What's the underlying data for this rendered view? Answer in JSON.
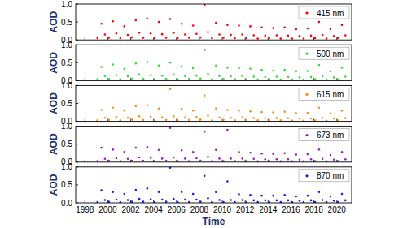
{
  "chart_data": [
    {
      "type": "scatter",
      "y_label": "AOD",
      "marker": "circle",
      "legend": "upper right",
      "tick_labels": "y",
      "xlim": [
        1997.2,
        2021.3
      ],
      "xticks": [
        1998,
        2000,
        2002,
        2004,
        2006,
        2008,
        2010,
        2012,
        2014,
        2016,
        2018,
        2020
      ],
      "ylim": [
        0,
        1
      ],
      "yticks": [
        {
          "value": 0,
          "label": "0.0"
        },
        {
          "value": 0.5,
          "label": "0.5"
        },
        {
          "value": 1,
          "label": "1.0"
        }
      ],
      "x": [
        1999.1,
        1999.45,
        1999.75,
        2000.1,
        2000.45,
        2000.75,
        2001.1,
        2001.45,
        2001.75,
        2002.1,
        2002.45,
        2002.75,
        2003.1,
        2003.45,
        2003.75,
        2004.1,
        2004.45,
        2004.75,
        2005.1,
        2005.45,
        2005.75,
        2006.1,
        2006.45,
        2006.75,
        2007.1,
        2007.45,
        2007.75,
        2008.1,
        2008.45,
        2008.75,
        2009.1,
        2009.45,
        2009.75,
        2010.1,
        2010.45,
        2010.75,
        2011.1,
        2011.45,
        2011.75,
        2012.1,
        2012.45,
        2012.75,
        2013.1,
        2013.45,
        2013.75,
        2014.1,
        2014.45,
        2014.75,
        2015.1,
        2015.45,
        2015.75,
        2016.1,
        2016.45,
        2016.75,
        2017.1,
        2017.45,
        2017.75,
        2018.1,
        2018.45,
        2018.75,
        2019.1,
        2019.45,
        2019.75,
        2020.1,
        2020.45,
        2020.75
      ],
      "series": [
        {
          "name": "415 nm",
          "color": "#ff0000",
          "values": [
            0.05,
            0.45,
            0.15,
            0.06,
            0.52,
            0.18,
            0.05,
            0.38,
            0.14,
            0.07,
            0.55,
            0.2,
            0.06,
            0.6,
            0.18,
            0.05,
            0.5,
            0.16,
            0.06,
            0.58,
            0.2,
            0.05,
            0.45,
            0.15,
            0.06,
            0.4,
            0.17,
            0.07,
            0.98,
            0.22,
            0.05,
            0.48,
            0.15,
            0.06,
            0.42,
            0.14,
            0.05,
            0.4,
            0.15,
            0.05,
            0.38,
            0.13,
            0.04,
            0.35,
            0.12,
            0.05,
            0.33,
            0.13,
            0.04,
            0.35,
            0.12,
            0.04,
            0.3,
            0.11,
            0.04,
            0.32,
            0.12,
            0.05,
            0.5,
            0.14,
            0.04,
            0.3,
            0.11,
            0.05,
            0.42,
            0.13
          ]
        }
      ]
    },
    {
      "type": "scatter",
      "y_label": "AOD",
      "marker": "circle",
      "legend": "upper right",
      "tick_labels": "y",
      "xlim": [
        1997.2,
        2021.3
      ],
      "xticks": [
        1998,
        2000,
        2002,
        2004,
        2006,
        2008,
        2010,
        2012,
        2014,
        2016,
        2018,
        2020
      ],
      "ylim": [
        0,
        1
      ],
      "yticks": [
        {
          "value": 0,
          "label": "0.0"
        },
        {
          "value": 0.5,
          "label": "0.5"
        },
        {
          "value": 1,
          "label": "1.0"
        }
      ],
      "x": [
        1999.1,
        1999.45,
        1999.75,
        2000.1,
        2000.45,
        2000.75,
        2001.1,
        2001.45,
        2001.75,
        2002.1,
        2002.45,
        2002.75,
        2003.1,
        2003.45,
        2003.75,
        2004.1,
        2004.45,
        2004.75,
        2005.1,
        2005.45,
        2005.75,
        2006.1,
        2006.45,
        2006.75,
        2007.1,
        2007.45,
        2007.75,
        2008.1,
        2008.45,
        2008.75,
        2009.1,
        2009.45,
        2009.75,
        2010.1,
        2010.45,
        2010.75,
        2011.1,
        2011.45,
        2011.75,
        2012.1,
        2012.45,
        2012.75,
        2013.1,
        2013.45,
        2013.75,
        2014.1,
        2014.45,
        2014.75,
        2015.1,
        2015.45,
        2015.75,
        2016.1,
        2016.45,
        2016.75,
        2017.1,
        2017.45,
        2017.75,
        2018.1,
        2018.45,
        2018.75,
        2019.1,
        2019.45,
        2019.75,
        2020.1,
        2020.45,
        2020.75
      ],
      "series": [
        {
          "name": "500 nm",
          "color": "#33dd33",
          "values": [
            0.04,
            0.38,
            0.13,
            0.05,
            0.45,
            0.15,
            0.04,
            0.33,
            0.12,
            0.06,
            0.48,
            0.17,
            0.05,
            0.52,
            0.15,
            0.04,
            0.42,
            0.14,
            0.05,
            0.5,
            0.17,
            0.04,
            0.4,
            0.13,
            0.05,
            0.35,
            0.14,
            0.06,
            0.85,
            0.19,
            0.04,
            0.42,
            0.13,
            0.05,
            0.36,
            0.12,
            0.04,
            0.35,
            0.13,
            0.04,
            0.33,
            0.11,
            0.03,
            0.3,
            0.1,
            0.04,
            0.28,
            0.11,
            0.03,
            0.3,
            0.1,
            0.03,
            0.26,
            0.09,
            0.03,
            0.27,
            0.1,
            0.04,
            0.44,
            0.12,
            0.03,
            0.26,
            0.09,
            0.04,
            0.36,
            0.11
          ]
        }
      ]
    },
    {
      "type": "scatter",
      "y_label": "AOD",
      "marker": "circle",
      "legend": "upper right",
      "tick_labels": "y",
      "xlim": [
        1997.2,
        2021.3
      ],
      "xticks": [
        1998,
        2000,
        2002,
        2004,
        2006,
        2008,
        2010,
        2012,
        2014,
        2016,
        2018,
        2020
      ],
      "ylim": [
        0,
        1
      ],
      "yticks": [
        {
          "value": 0,
          "label": "0.0"
        },
        {
          "value": 0.5,
          "label": "0.5"
        },
        {
          "value": 1,
          "label": "1.0"
        }
      ],
      "x": [
        1999.1,
        1999.45,
        1999.75,
        2000.1,
        2000.45,
        2000.75,
        2001.1,
        2001.45,
        2001.75,
        2002.1,
        2002.45,
        2002.75,
        2003.1,
        2003.45,
        2003.75,
        2004.1,
        2004.45,
        2004.75,
        2005.1,
        2005.45,
        2005.75,
        2006.1,
        2006.45,
        2006.75,
        2007.1,
        2007.45,
        2007.75,
        2008.1,
        2008.45,
        2008.75,
        2009.1,
        2009.45,
        2009.75,
        2010.1,
        2010.45,
        2010.75,
        2011.1,
        2011.45,
        2011.75,
        2012.1,
        2012.45,
        2012.75,
        2013.1,
        2013.45,
        2013.75,
        2014.1,
        2014.45,
        2014.75,
        2015.1,
        2015.45,
        2015.75,
        2016.1,
        2016.45,
        2016.75,
        2017.1,
        2017.45,
        2017.75,
        2018.1,
        2018.45,
        2018.75,
        2019.1,
        2019.45,
        2019.75,
        2020.1,
        2020.45,
        2020.75
      ],
      "series": [
        {
          "name": "615 nm",
          "color": "#ff8c1a",
          "values": [
            0.03,
            0.32,
            0.1,
            0.04,
            0.38,
            0.12,
            0.03,
            0.3,
            0.1,
            0.05,
            0.42,
            0.14,
            0.04,
            0.45,
            0.13,
            0.03,
            0.36,
            0.11,
            0.04,
            0.9,
            0.14,
            0.03,
            0.35,
            0.11,
            0.04,
            0.3,
            0.12,
            0.05,
            0.72,
            0.16,
            0.03,
            0.36,
            0.11,
            0.04,
            0.32,
            0.1,
            0.03,
            0.3,
            0.11,
            0.03,
            0.28,
            0.09,
            0.03,
            0.26,
            0.09,
            0.03,
            0.25,
            0.09,
            0.03,
            0.27,
            0.09,
            0.02,
            0.23,
            0.08,
            0.02,
            0.24,
            0.08,
            0.03,
            0.38,
            0.1,
            0.02,
            0.22,
            0.08,
            0.03,
            0.3,
            0.09
          ]
        }
      ]
    },
    {
      "type": "scatter",
      "y_label": "AOD",
      "marker": "circle",
      "legend": "upper right",
      "tick_labels": "y",
      "xlim": [
        1997.2,
        2021.3
      ],
      "xticks": [
        1998,
        2000,
        2002,
        2004,
        2006,
        2008,
        2010,
        2012,
        2014,
        2016,
        2018,
        2020
      ],
      "ylim": [
        0,
        1
      ],
      "yticks": [
        {
          "value": 0,
          "label": "0.0"
        },
        {
          "value": 0.5,
          "label": "0.5"
        },
        {
          "value": 1,
          "label": "1.0"
        }
      ],
      "x": [
        1999.1,
        1999.45,
        1999.75,
        2000.1,
        2000.45,
        2000.75,
        2001.1,
        2001.45,
        2001.75,
        2002.1,
        2002.45,
        2002.75,
        2003.1,
        2003.45,
        2003.75,
        2004.1,
        2004.45,
        2004.75,
        2005.1,
        2005.45,
        2005.75,
        2006.1,
        2006.45,
        2006.75,
        2007.1,
        2007.45,
        2007.75,
        2008.1,
        2008.45,
        2008.75,
        2009.1,
        2009.45,
        2009.75,
        2010.1,
        2010.45,
        2010.75,
        2011.1,
        2011.45,
        2011.75,
        2012.1,
        2012.45,
        2012.75,
        2013.1,
        2013.45,
        2013.75,
        2014.1,
        2014.45,
        2014.75,
        2015.1,
        2015.45,
        2015.75,
        2016.1,
        2016.45,
        2016.75,
        2017.1,
        2017.45,
        2017.75,
        2018.1,
        2018.45,
        2018.75,
        2019.1,
        2019.45,
        2019.75,
        2020.1,
        2020.45,
        2020.75
      ],
      "series": [
        {
          "name": "673 nm",
          "color": "#9b1fc9",
          "values": [
            0.03,
            0.4,
            0.09,
            0.04,
            0.35,
            0.11,
            0.03,
            0.28,
            0.09,
            0.04,
            0.4,
            0.13,
            0.04,
            0.42,
            0.12,
            0.03,
            0.34,
            0.1,
            0.04,
            0.95,
            0.13,
            0.03,
            0.33,
            0.1,
            0.03,
            0.28,
            0.11,
            0.04,
            0.85,
            0.15,
            0.03,
            0.34,
            0.1,
            0.03,
            0.9,
            0.1,
            0.03,
            0.28,
            0.1,
            0.03,
            0.26,
            0.09,
            0.02,
            0.24,
            0.08,
            0.03,
            0.23,
            0.08,
            0.02,
            0.25,
            0.08,
            0.02,
            0.21,
            0.07,
            0.02,
            0.22,
            0.08,
            0.03,
            0.35,
            0.09,
            0.02,
            0.2,
            0.07,
            0.03,
            0.28,
            0.08
          ]
        }
      ]
    },
    {
      "type": "scatter",
      "y_label": "AOD",
      "x_label": "Time",
      "marker": "circle",
      "legend": "upper right",
      "xlim": [
        1997.2,
        2021.3
      ],
      "xticks": [
        1998,
        2000,
        2002,
        2004,
        2006,
        2008,
        2010,
        2012,
        2014,
        2016,
        2018,
        2020
      ],
      "ylim": [
        0,
        1
      ],
      "yticks": [
        {
          "value": 0,
          "label": "0.0"
        },
        {
          "value": 0.5,
          "label": "0.5"
        },
        {
          "value": 1,
          "label": "1.0"
        }
      ],
      "x": [
        1999.1,
        1999.45,
        1999.75,
        2000.1,
        2000.45,
        2000.75,
        2001.1,
        2001.45,
        2001.75,
        2002.1,
        2002.45,
        2002.75,
        2003.1,
        2003.45,
        2003.75,
        2004.1,
        2004.45,
        2004.75,
        2005.1,
        2005.45,
        2005.75,
        2006.1,
        2006.45,
        2006.75,
        2007.1,
        2007.45,
        2007.75,
        2008.1,
        2008.45,
        2008.75,
        2009.1,
        2009.45,
        2009.75,
        2010.1,
        2010.45,
        2010.75,
        2011.1,
        2011.45,
        2011.75,
        2012.1,
        2012.45,
        2012.75,
        2013.1,
        2013.45,
        2013.75,
        2014.1,
        2014.45,
        2014.75,
        2015.1,
        2015.45,
        2015.75,
        2016.1,
        2016.45,
        2016.75,
        2017.1,
        2017.45,
        2017.75,
        2018.1,
        2018.45,
        2018.75,
        2019.1,
        2019.45,
        2019.75,
        2020.1,
        2020.45,
        2020.75
      ],
      "series": [
        {
          "name": "870 nm",
          "color": "#1a1aff",
          "values": [
            0.02,
            0.35,
            0.08,
            0.03,
            0.3,
            0.09,
            0.02,
            0.25,
            0.08,
            0.03,
            0.36,
            0.11,
            0.03,
            0.4,
            0.1,
            0.02,
            0.3,
            0.09,
            0.03,
            0.98,
            0.11,
            0.02,
            0.3,
            0.09,
            0.02,
            0.25,
            0.09,
            0.03,
            0.75,
            0.13,
            0.02,
            0.3,
            0.08,
            0.02,
            0.6,
            0.08,
            0.02,
            0.24,
            0.08,
            0.02,
            0.22,
            0.07,
            0.02,
            0.2,
            0.07,
            0.02,
            0.2,
            0.07,
            0.02,
            0.22,
            0.07,
            0.02,
            0.18,
            0.06,
            0.02,
            0.2,
            0.07,
            0.02,
            0.3,
            0.08,
            0.02,
            0.18,
            0.06,
            0.02,
            0.25,
            0.07
          ]
        }
      ]
    }
  ]
}
